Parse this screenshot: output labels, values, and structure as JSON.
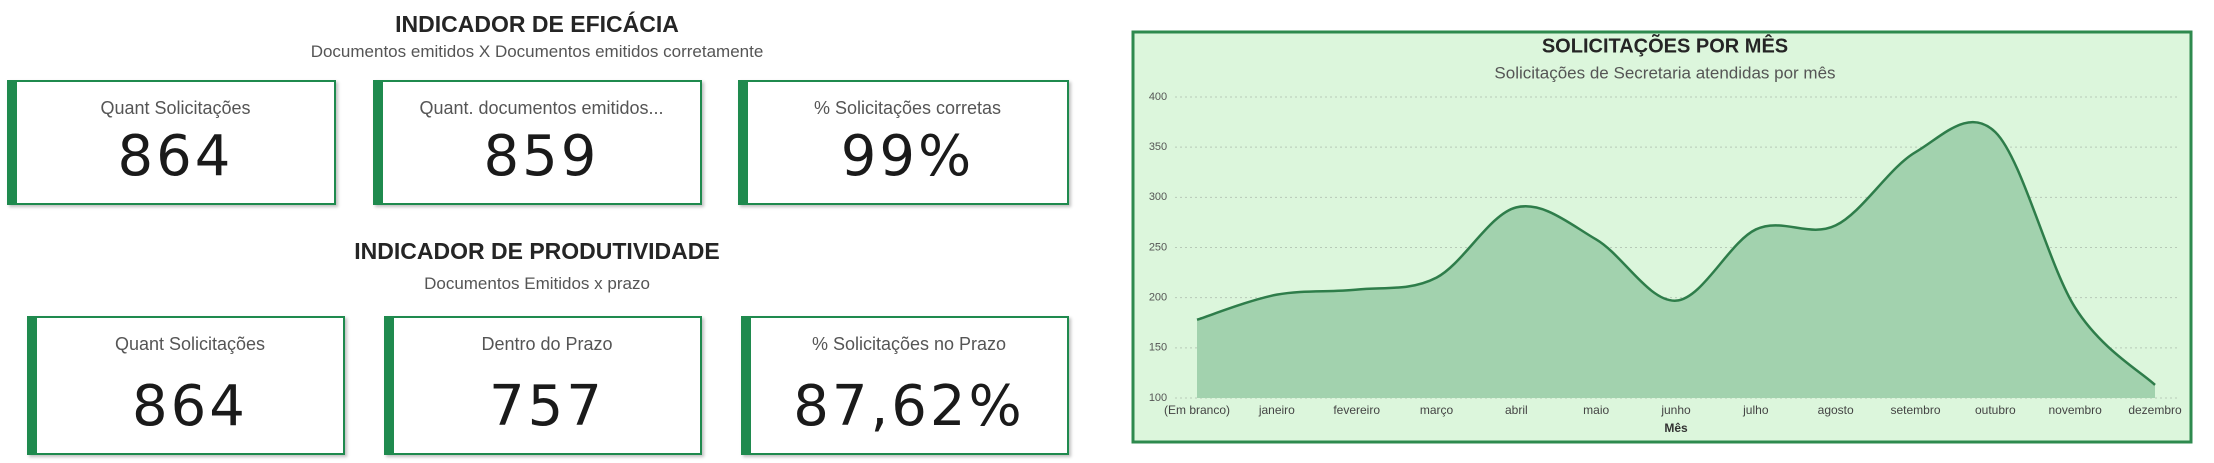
{
  "efficacy": {
    "title": "INDICADOR DE EFICÁCIA",
    "subtitle": "Documentos emitidos X Documentos emitidos corretamente",
    "cards": [
      {
        "label": "Quant Solicitações",
        "value": "864"
      },
      {
        "label": "Quant. documentos emitidos...",
        "value": "859"
      },
      {
        "label": "% Solicitações corretas",
        "value": "99%"
      }
    ]
  },
  "productivity": {
    "title": "INDICADOR DE PRODUTIVIDADE",
    "subtitle": "Documentos Emitidos x prazo",
    "cards": [
      {
        "label": "Quant Solicitações",
        "value": "864"
      },
      {
        "label": "Dentro do Prazo",
        "value": "757"
      },
      {
        "label": "% Solicitações no Prazo",
        "value": "87,62%"
      }
    ]
  },
  "chart_data": {
    "type": "area",
    "title": "SOLICITAÇÕES POR MÊS",
    "subtitle": "Solicitações de Secretaria atendidas por mês",
    "x_label": "Mês",
    "categories": [
      "(Em branco)",
      "janeiro",
      "fevereiro",
      "março",
      "abril",
      "maio",
      "junho",
      "julho",
      "agosto",
      "setembro",
      "outubro",
      "novembro",
      "dezembro"
    ],
    "series": [
      {
        "name": "Solicitações",
        "color": "#2e7d4a",
        "fill": "#a2d2ae",
        "values": [
          178,
          203,
          208,
          220,
          290,
          258,
          197,
          268,
          272,
          345,
          365,
          190,
          113
        ]
      }
    ],
    "ylim": [
      100,
      400
    ],
    "yticks": [
      100,
      150,
      200,
      250,
      300,
      350,
      400
    ],
    "grid": true,
    "background": "#dcf6dc"
  }
}
